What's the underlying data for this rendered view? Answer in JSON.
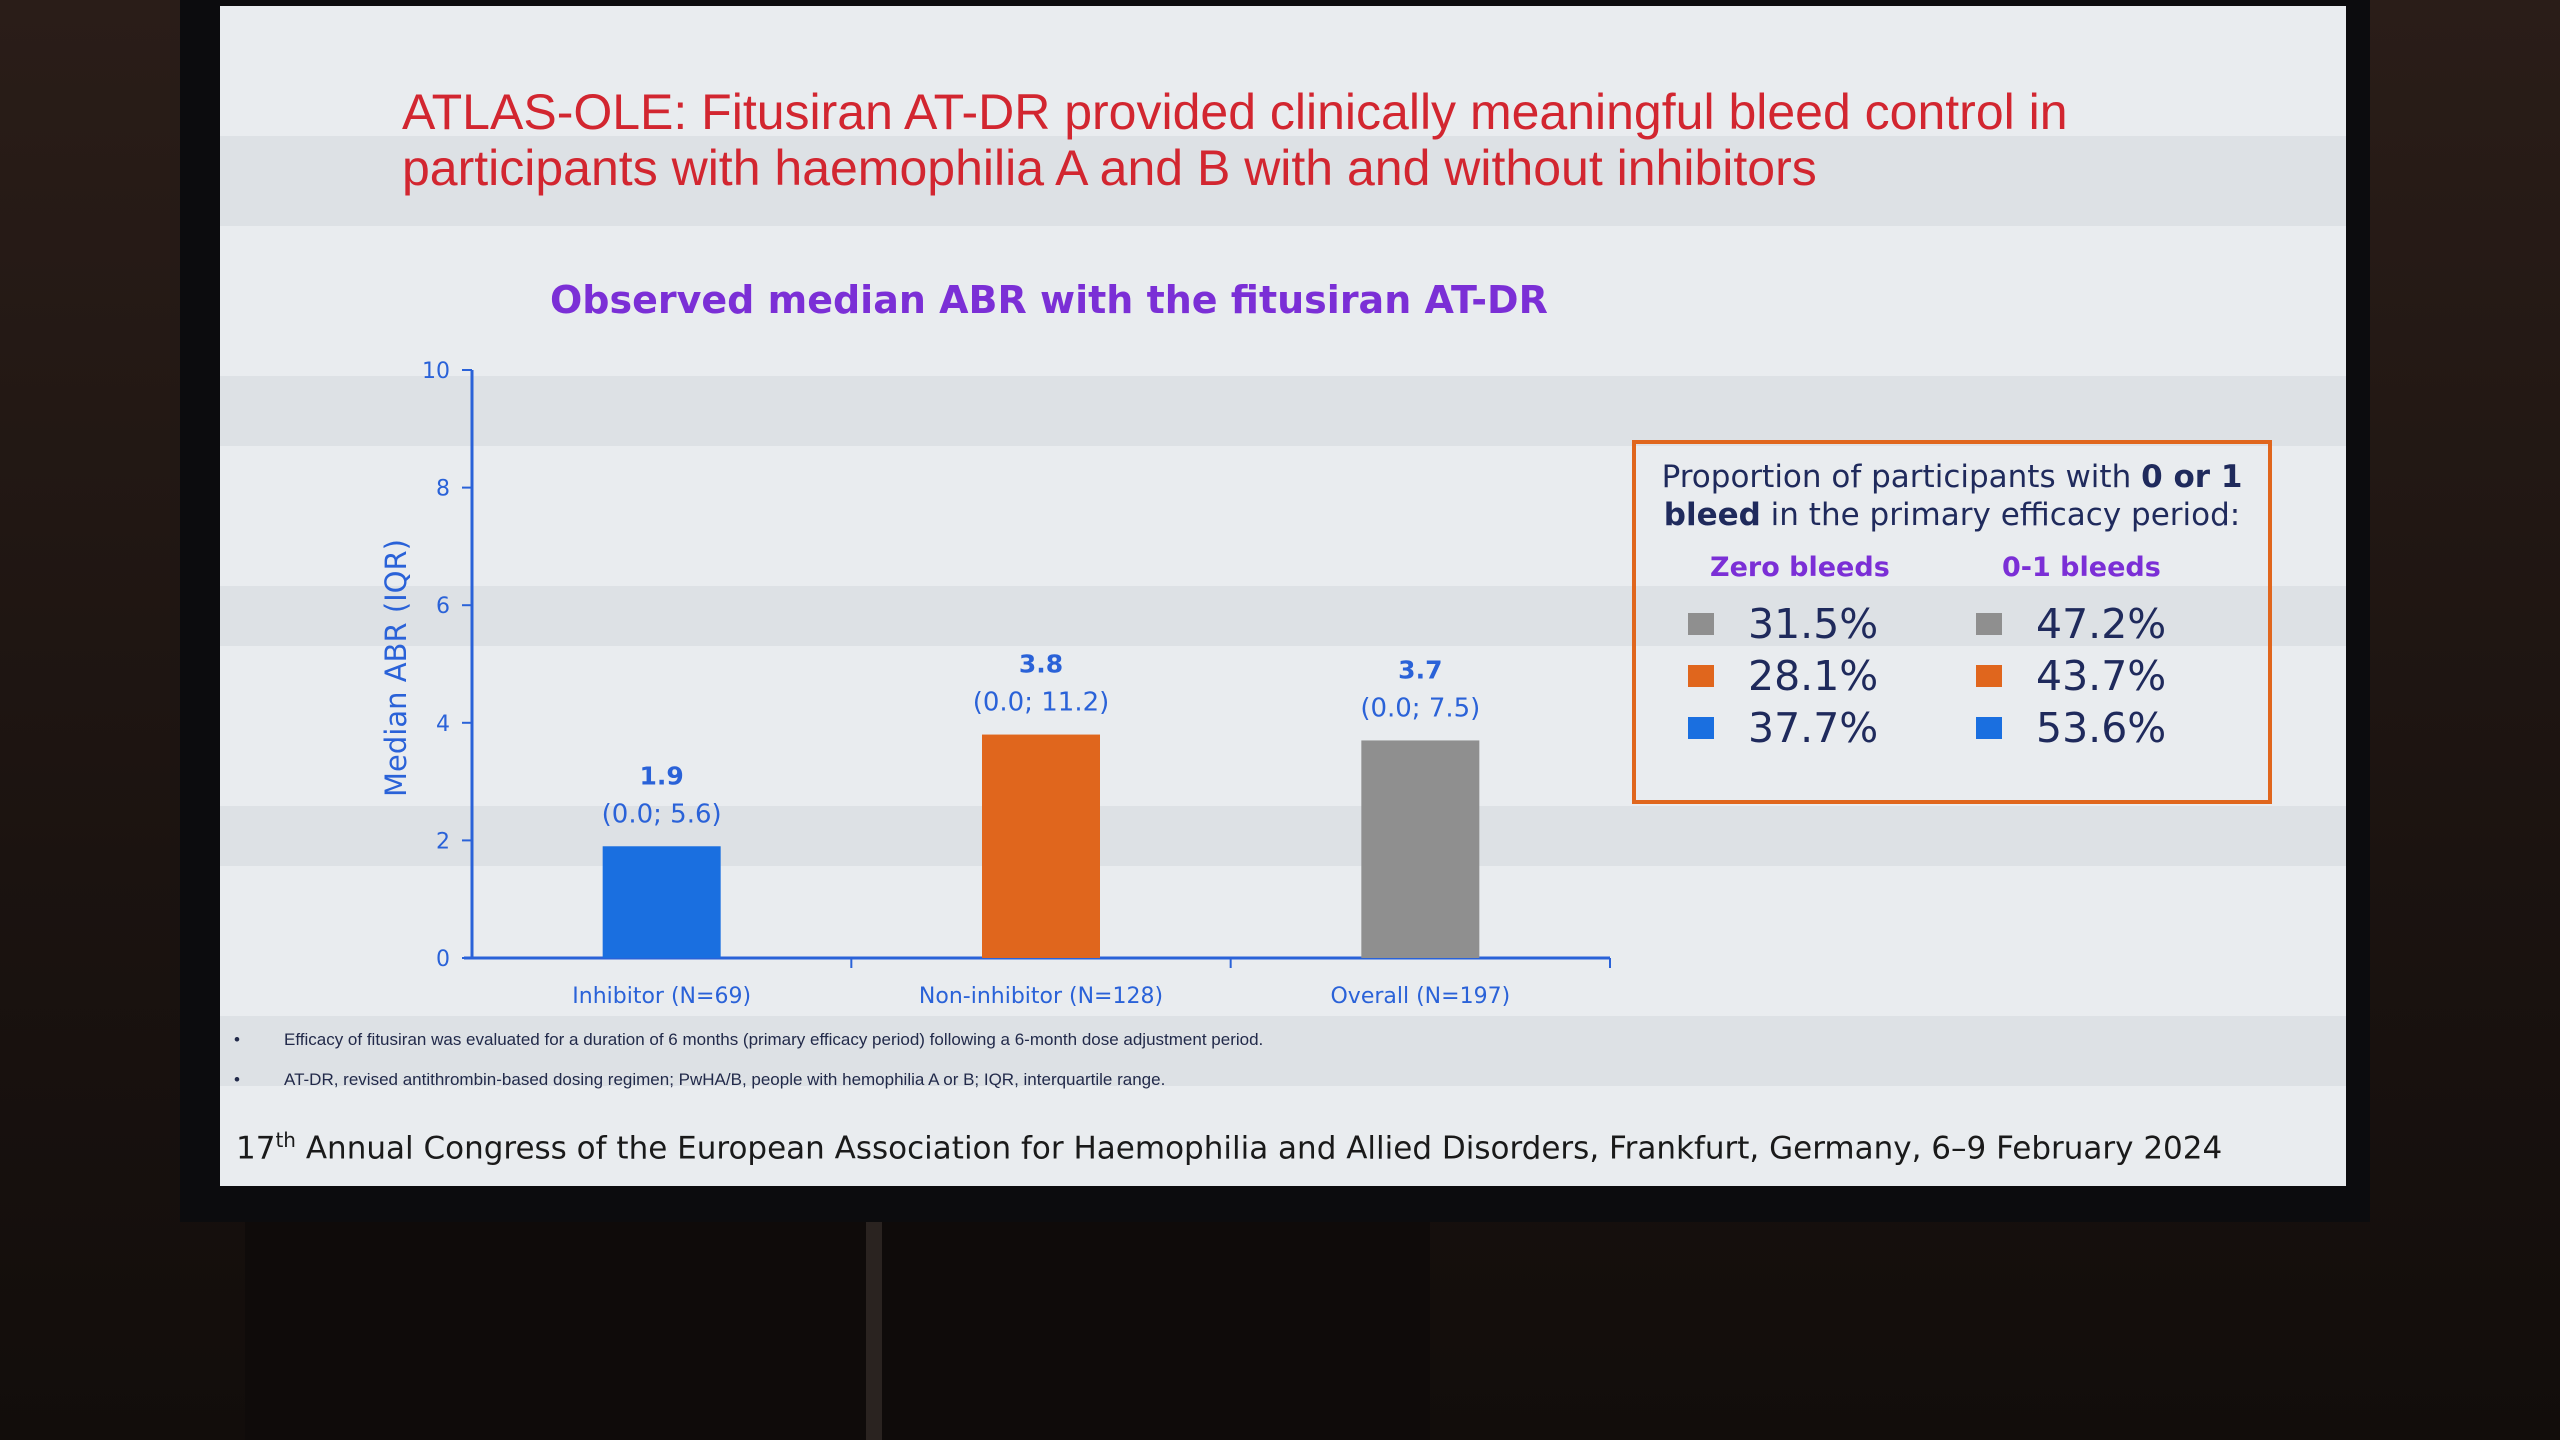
{
  "slide": {
    "title_line1": "ATLAS-OLE: Fitusiran AT-DR provided clinically meaningful bleed control in",
    "title_line2": "participants with haemophilia A and B with and without inhibitors"
  },
  "chart_data": {
    "type": "bar",
    "title": "Observed median ABR with the fitusiran AT-DR",
    "ylabel": "Median ABR (IQR)",
    "xlabel": "",
    "ylim": [
      0,
      10
    ],
    "yticks": [
      0,
      2,
      4,
      6,
      8,
      10
    ],
    "categories": [
      "Inhibitor (N=69)",
      "Non-inhibitor (N=128)",
      "Overall (N=197)"
    ],
    "values": [
      1.9,
      3.8,
      3.7
    ],
    "value_labels": [
      "1.9",
      "3.8",
      "3.7"
    ],
    "iqr_labels": [
      "(0.0; 5.6)",
      "(0.0; 11.2)",
      "(0.0; 7.5)"
    ],
    "colors": [
      "#1a6fe0",
      "#e0661d",
      "#8f8f8f"
    ],
    "axis_color": "#2a62d8",
    "grid": false
  },
  "efficacy_box": {
    "heading_pre": "Proportion of participants with ",
    "heading_bold1": "0 or 1",
    "heading_bold2": "bleed",
    "heading_post": " in the primary efficacy period:",
    "zero_header": "Zero bleeds",
    "zero_one_header": "0-1 bleeds",
    "rows": [
      {
        "color": "#8f8f8f",
        "zero": "31.5%",
        "zero_one": "47.2%"
      },
      {
        "color": "#e0661d",
        "zero": "28.1%",
        "zero_one": "43.7%"
      },
      {
        "color": "#1a6fe0",
        "zero": "37.7%",
        "zero_one": "53.6%"
      }
    ],
    "border_color": "#e0661d"
  },
  "footnotes": {
    "bullet": "•",
    "items": [
      "Efficacy of fitusiran was evaluated for a duration of 6 months (primary efficacy period) following a 6-month dose adjustment period.",
      "AT-DR, revised antithrombin-based dosing regimen; PwHA/B, people with hemophilia A or B; IQR, interquartile range."
    ]
  },
  "footer": {
    "ordinal_number": "17",
    "ordinal_suffix": "th",
    "text": " Annual Congress of the European Association for Haemophilia and Allied Disorders, Frankfurt, Germany, 6–9 February 2024"
  }
}
